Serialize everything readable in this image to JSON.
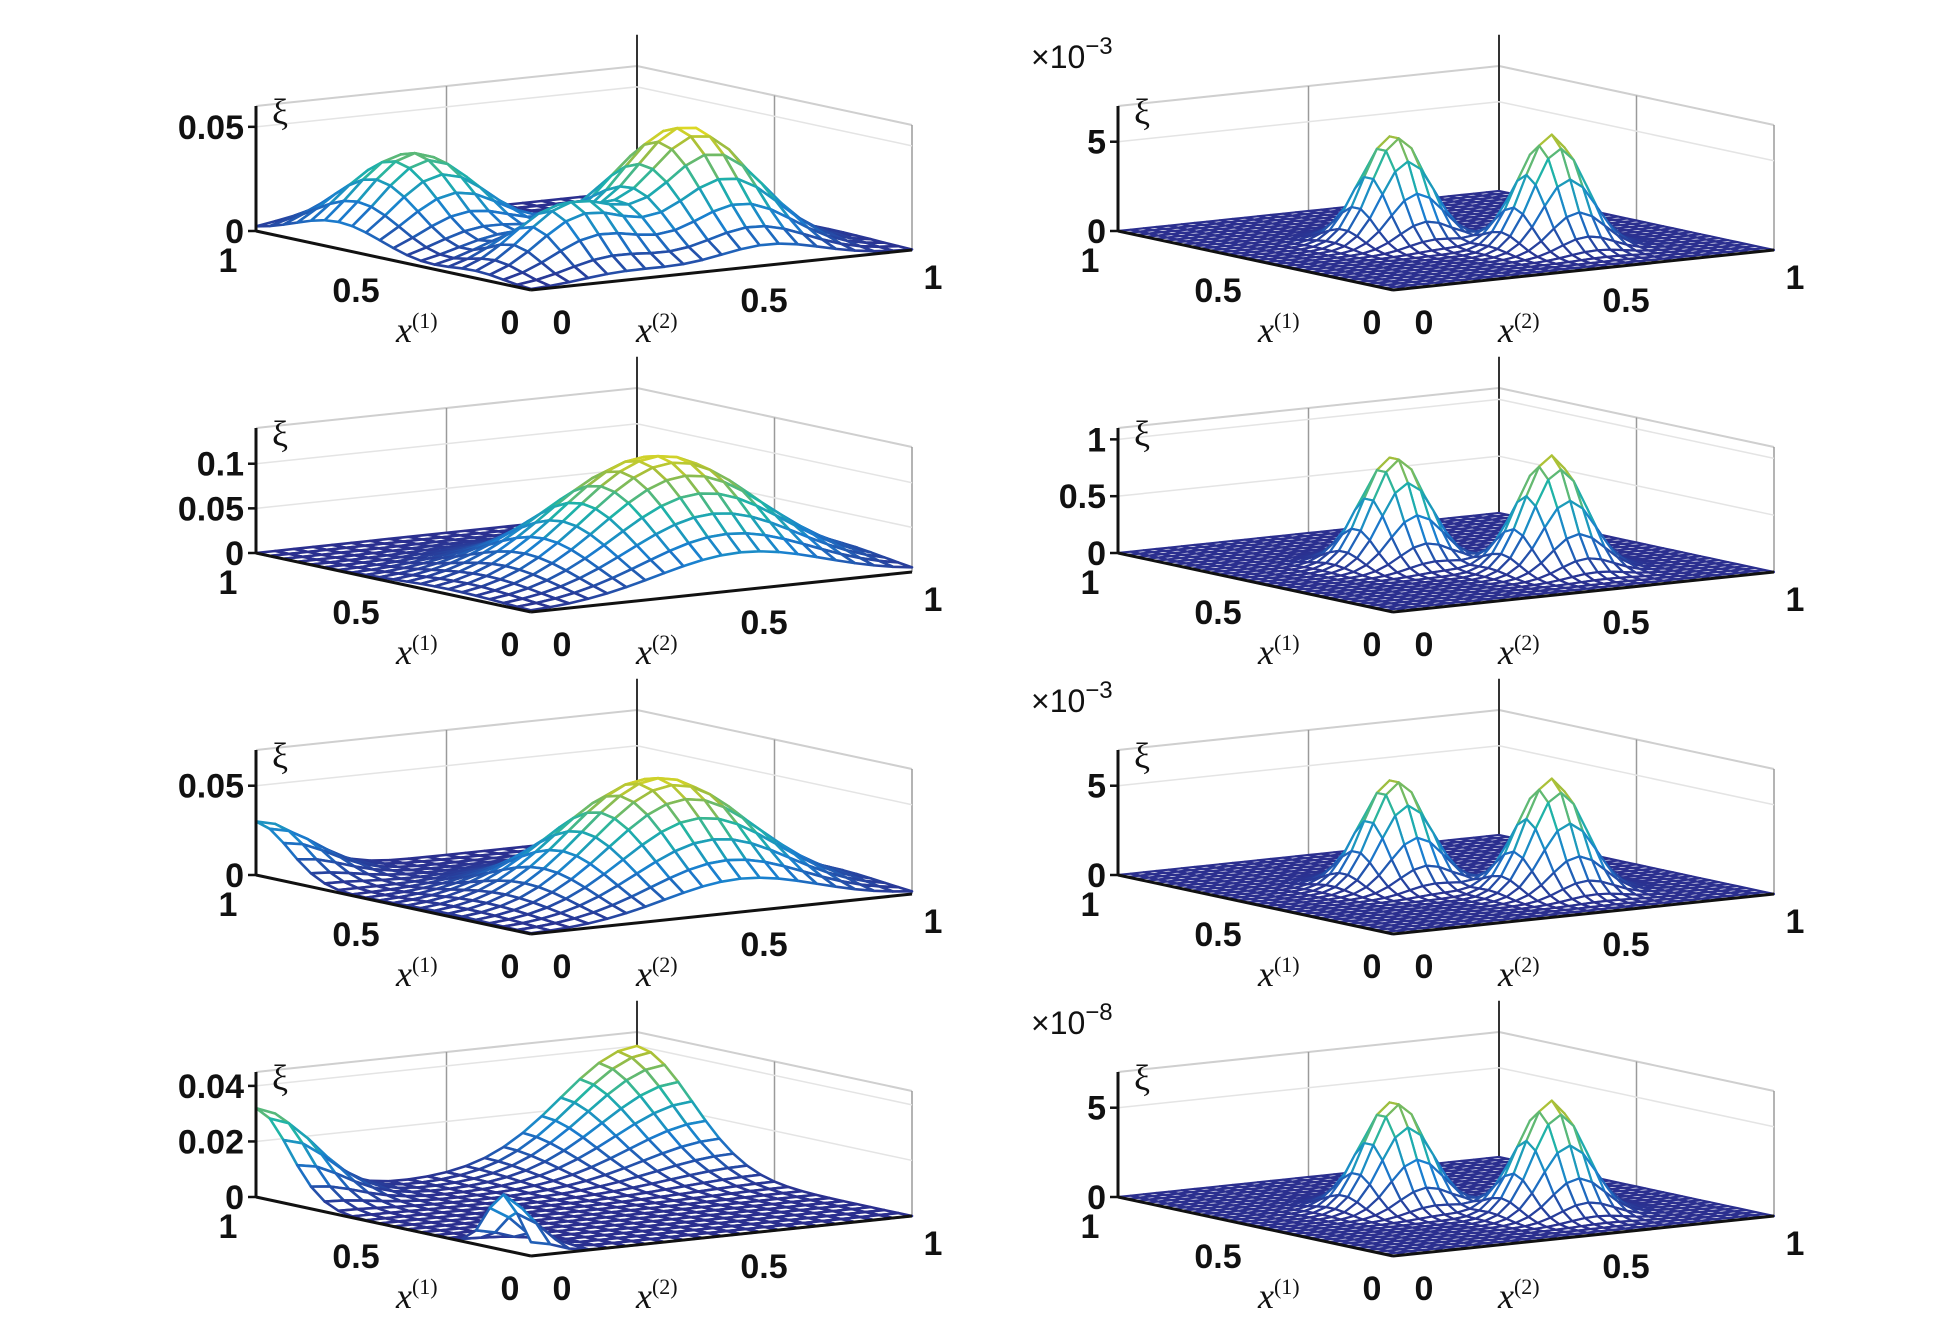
{
  "colors": {
    "low": "#2b2f8f",
    "mid": "#1fb4a8",
    "high": "#f9e51a",
    "wall": "#c8c8c8",
    "axis": "#111111"
  },
  "chart_data": [
    {
      "type": "surface",
      "plot": "mesh",
      "zlabel": "ξ",
      "xlabel": "x",
      "xlabel_sup": "(1)",
      "ylabel": "x",
      "ylabel_sup": "(2)",
      "xticks": [
        "0",
        "0.5",
        "1"
      ],
      "yticks": [
        "0",
        "0.5",
        "1"
      ],
      "zticks": [
        0,
        0.05
      ],
      "ztick_labels": [
        "0",
        "0.05"
      ],
      "zlim": [
        0,
        0.06
      ],
      "exponent": "",
      "surface_bumps": [
        {
          "x1": 0.7,
          "x2": 0.2,
          "height": 0.042,
          "s1": 0.16,
          "s2": 0.13
        },
        {
          "x1": 0.3,
          "x2": 0.62,
          "height": 0.058,
          "s1": 0.16,
          "s2": 0.14
        },
        {
          "x1": 0.2,
          "x2": 0.25,
          "height": 0.03,
          "s1": 0.1,
          "s2": 0.12
        }
      ]
    },
    {
      "type": "surface",
      "plot": "mesh",
      "zlabel": "ξ",
      "xlabel": "x",
      "xlabel_sup": "(1)",
      "ylabel": "x",
      "ylabel_sup": "(2)",
      "xticks": [
        "0",
        "0.5",
        "1"
      ],
      "yticks": [
        "0",
        "0.5",
        "1"
      ],
      "zticks": [
        0,
        0.05,
        0.1
      ],
      "ztick_labels": [
        "0",
        "0.05",
        "0.1"
      ],
      "zlim": [
        0,
        0.14
      ],
      "exponent": "",
      "surface_bumps": [
        {
          "x1": 0.3,
          "x2": 0.55,
          "height": 0.13,
          "s1": 0.2,
          "s2": 0.22
        }
      ]
    },
    {
      "type": "surface",
      "plot": "mesh",
      "zlabel": "ξ",
      "xlabel": "x",
      "xlabel_sup": "(1)",
      "ylabel": "x",
      "ylabel_sup": "(2)",
      "xticks": [
        "0",
        "0.5",
        "1"
      ],
      "yticks": [
        "0",
        "0.5",
        "1"
      ],
      "zticks": [
        0,
        0.05
      ],
      "ztick_labels": [
        "0",
        "0.05"
      ],
      "zlim": [
        0,
        0.07
      ],
      "exponent": "",
      "surface_bumps": [
        {
          "x1": 0.3,
          "x2": 0.55,
          "height": 0.065,
          "s1": 0.19,
          "s2": 0.2
        },
        {
          "x1": 1.0,
          "x2": 0.0,
          "height": 0.03,
          "s1": 0.12,
          "s2": 0.12
        }
      ]
    },
    {
      "type": "surface",
      "plot": "mesh",
      "zlabel": "ξ",
      "xlabel": "x",
      "xlabel_sup": "(1)",
      "ylabel": "x",
      "ylabel_sup": "(2)",
      "xticks": [
        "0",
        "0.5",
        "1"
      ],
      "yticks": [
        "0",
        "0.5",
        "1"
      ],
      "zticks": [
        0,
        0.02,
        0.04
      ],
      "ztick_labels": [
        "0",
        "0.02",
        "0.04"
      ],
      "zlim": [
        0,
        0.045
      ],
      "exponent": "",
      "surface_bumps": [
        {
          "x1": 1.0,
          "x2": 0.0,
          "height": 0.032,
          "s1": 0.12,
          "s2": 0.12
        },
        {
          "x1": 1.0,
          "x2": 1.0,
          "height": 0.04,
          "s1": 0.2,
          "s2": 0.2
        },
        {
          "x1": 0.1,
          "x2": 0.0,
          "height": 0.02,
          "s1": 0.06,
          "s2": 0.06
        }
      ]
    },
    {
      "type": "surface",
      "plot": "mesh",
      "zlabel": "ξ",
      "xlabel": "x",
      "xlabel_sup": "(1)",
      "ylabel": "x",
      "ylabel_sup": "(2)",
      "xticks": [
        "0",
        "0.5",
        "1"
      ],
      "yticks": [
        "0",
        "0.5",
        "1"
      ],
      "zticks": [
        0,
        5
      ],
      "ztick_labels": [
        "0",
        "5"
      ],
      "zlim": [
        0,
        7
      ],
      "exponent": "-3",
      "surface_bumps": [
        {
          "x1": 0.55,
          "x2": 0.4,
          "height": 6,
          "s1": 0.07,
          "s2": 0.07
        },
        {
          "x1": 0.3,
          "x2": 0.63,
          "height": 6.3,
          "s1": 0.07,
          "s2": 0.07
        }
      ]
    },
    {
      "type": "surface",
      "plot": "mesh",
      "zlabel": "ξ",
      "xlabel": "x",
      "xlabel_sup": "(1)",
      "ylabel": "x",
      "ylabel_sup": "(2)",
      "xticks": [
        "0",
        "0.5",
        "1"
      ],
      "yticks": [
        "0",
        "0.5",
        "1"
      ],
      "zticks": [
        0,
        0.5,
        1
      ],
      "ztick_labels": [
        "0",
        "0.5",
        "1"
      ],
      "zlim": [
        0,
        1.1
      ],
      "exponent": "",
      "surface_bumps": [
        {
          "x1": 0.55,
          "x2": 0.4,
          "height": 0.95,
          "s1": 0.07,
          "s2": 0.07
        },
        {
          "x1": 0.3,
          "x2": 0.63,
          "height": 1.0,
          "s1": 0.07,
          "s2": 0.07
        }
      ]
    },
    {
      "type": "surface",
      "plot": "mesh",
      "zlabel": "ξ",
      "xlabel": "x",
      "xlabel_sup": "(1)",
      "ylabel": "x",
      "ylabel_sup": "(2)",
      "xticks": [
        "0",
        "0.5",
        "1"
      ],
      "yticks": [
        "0",
        "0.5",
        "1"
      ],
      "zticks": [
        0,
        5
      ],
      "ztick_labels": [
        "0",
        "5"
      ],
      "zlim": [
        0,
        7
      ],
      "exponent": "-3",
      "surface_bumps": [
        {
          "x1": 0.55,
          "x2": 0.4,
          "height": 6,
          "s1": 0.07,
          "s2": 0.07
        },
        {
          "x1": 0.3,
          "x2": 0.63,
          "height": 6.3,
          "s1": 0.07,
          "s2": 0.07
        }
      ]
    },
    {
      "type": "surface",
      "plot": "mesh",
      "zlabel": "ξ",
      "xlabel": "x",
      "xlabel_sup": "(1)",
      "ylabel": "x",
      "ylabel_sup": "(2)",
      "xticks": [
        "0",
        "0.5",
        "1"
      ],
      "yticks": [
        "0",
        "0.5",
        "1"
      ],
      "zticks": [
        0,
        5
      ],
      "ztick_labels": [
        "0",
        "5"
      ],
      "zlim": [
        0,
        7
      ],
      "exponent": "-8",
      "surface_bumps": [
        {
          "x1": 0.55,
          "x2": 0.4,
          "height": 6,
          "s1": 0.07,
          "s2": 0.07
        },
        {
          "x1": 0.3,
          "x2": 0.63,
          "height": 6.3,
          "s1": 0.07,
          "s2": 0.07
        }
      ]
    }
  ]
}
